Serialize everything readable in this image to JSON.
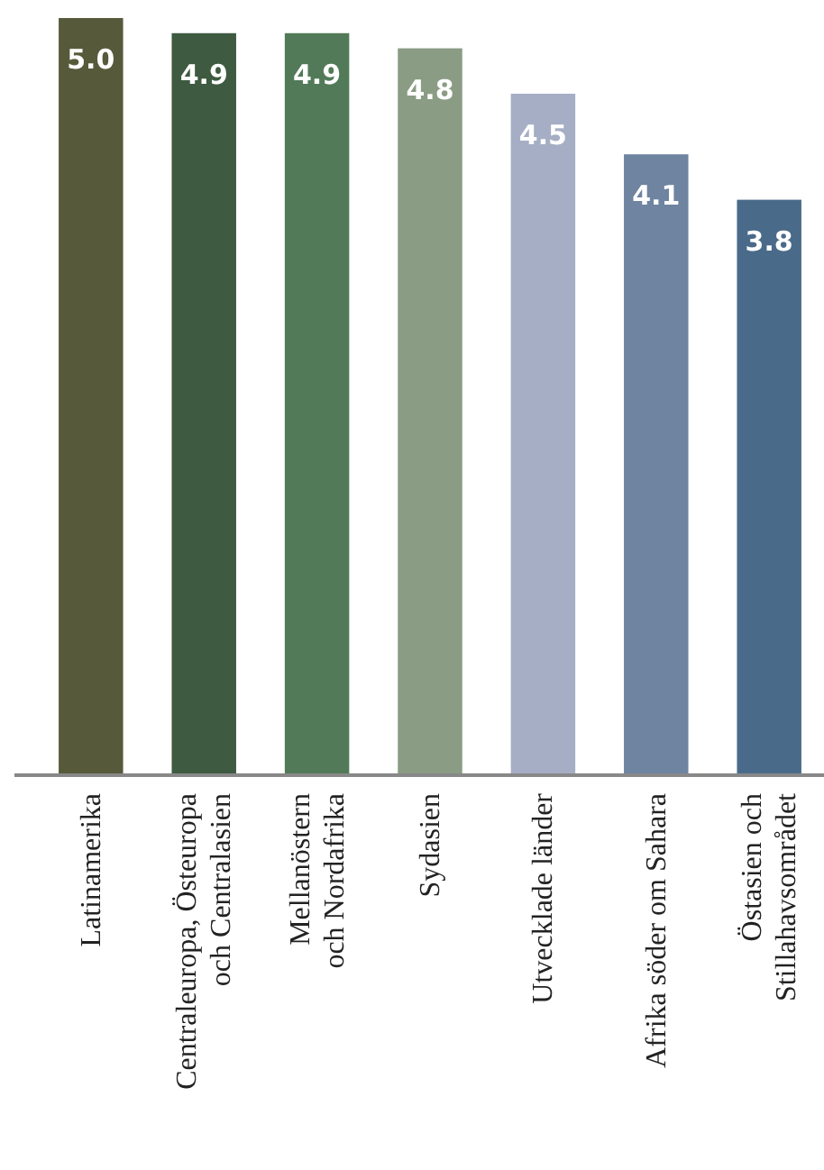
{
  "chart_data": {
    "type": "bar",
    "categories": [
      "Latinamerika",
      "Centraleuropa, Östeuropa\noch Centralasien",
      "Mellanöstern\noch Nordafrika",
      "Sydasien",
      "Utvecklade länder",
      "Afrika söder om Sahara",
      "Östasien och\nStillahavsområdet"
    ],
    "values": [
      5.0,
      4.9,
      4.9,
      4.8,
      4.5,
      4.1,
      3.8
    ],
    "colors": [
      "#575a3a",
      "#3e5a40",
      "#527a58",
      "#8a9c84",
      "#a5aec4",
      "#6e84a0",
      "#4a6a8a"
    ],
    "value_labels": [
      "5.0",
      "4.9",
      "4.9",
      "4.8",
      "4.5",
      "4.1",
      "3.8"
    ]
  }
}
